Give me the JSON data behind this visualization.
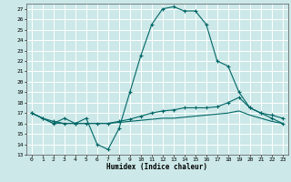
{
  "xlabel": "Humidex (Indice chaleur)",
  "background_color": "#cce8e8",
  "grid_color": "#ffffff",
  "line_color": "#006666",
  "xlim": [
    -0.5,
    23.5
  ],
  "ylim": [
    13,
    27.5
  ],
  "yticks": [
    13,
    14,
    15,
    16,
    17,
    18,
    19,
    20,
    21,
    22,
    23,
    24,
    25,
    26,
    27
  ],
  "xticks": [
    0,
    1,
    2,
    3,
    4,
    5,
    6,
    7,
    8,
    9,
    10,
    11,
    12,
    13,
    14,
    15,
    16,
    17,
    18,
    19,
    20,
    21,
    22,
    23
  ],
  "line1_x": [
    0,
    1,
    2,
    3,
    4,
    5,
    6,
    7,
    8,
    9,
    10,
    11,
    12,
    13,
    14,
    15,
    16,
    17,
    18,
    19,
    20,
    21,
    22,
    23
  ],
  "line1_y": [
    17.0,
    16.5,
    16.0,
    16.5,
    16.0,
    16.5,
    14.0,
    13.5,
    15.5,
    19.0,
    22.5,
    25.5,
    27.0,
    27.2,
    26.8,
    26.8,
    25.5,
    22.0,
    21.5,
    19.0,
    17.5,
    17.0,
    16.5,
    16.0
  ],
  "line2_x": [
    0,
    1,
    2,
    3,
    4,
    5,
    6,
    7,
    8,
    9,
    10,
    11,
    12,
    13,
    14,
    15,
    16,
    17,
    18,
    19,
    20,
    21,
    22,
    23
  ],
  "line2_y": [
    17.0,
    16.5,
    16.2,
    16.0,
    16.0,
    16.0,
    16.0,
    16.0,
    16.2,
    16.4,
    16.7,
    17.0,
    17.2,
    17.3,
    17.5,
    17.5,
    17.5,
    17.6,
    18.0,
    18.5,
    17.5,
    17.0,
    16.8,
    16.5
  ],
  "line3_x": [
    0,
    1,
    2,
    3,
    4,
    5,
    6,
    7,
    8,
    9,
    10,
    11,
    12,
    13,
    14,
    15,
    16,
    17,
    18,
    19,
    20,
    21,
    22,
    23
  ],
  "line3_y": [
    17.0,
    16.5,
    16.0,
    16.0,
    16.0,
    16.0,
    16.0,
    16.0,
    16.1,
    16.2,
    16.3,
    16.4,
    16.5,
    16.5,
    16.6,
    16.7,
    16.8,
    16.9,
    17.0,
    17.2,
    16.8,
    16.5,
    16.2,
    16.0
  ]
}
